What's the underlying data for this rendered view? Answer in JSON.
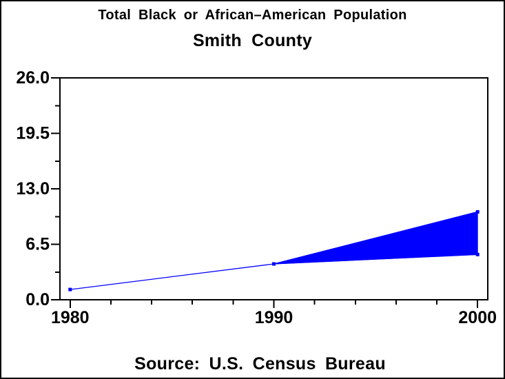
{
  "page": {
    "title_line1": "Total Black or African–American Population",
    "title_line2": "Smith County",
    "footnote": "Source: U.S. Census Bureau"
  },
  "chart_data": {
    "type": "area",
    "title": "Total Black or African–American Population",
    "subtitle": "Smith County",
    "source_note": "Source: U.S. Census Bureau",
    "xlabel": "",
    "ylabel": "",
    "xlim": [
      1979.5,
      2000.5
    ],
    "ylim": [
      0,
      26
    ],
    "grid": false,
    "legend": "none",
    "series_color": "#0000ff",
    "axis_color": "#000000",
    "x_major_ticks": [
      1980,
      1990,
      2000
    ],
    "x_major_tick_labels": [
      "1980",
      "1990",
      "2000"
    ],
    "x_minor_step": 2,
    "y_major_ticks": [
      0.0,
      6.5,
      13.0,
      19.5,
      26.0
    ],
    "y_tick_labels": [
      "0.0",
      "6.5",
      "13.0",
      "19.5",
      "26.0"
    ],
    "y_minor_ticks": [
      3.25,
      9.75,
      16.25,
      22.75
    ],
    "series": [
      {
        "name": "lower-line",
        "x": [
          1980,
          1990,
          2000
        ],
        "y": [
          1.2,
          4.2,
          5.3
        ]
      },
      {
        "name": "upper-line",
        "x": [
          1990,
          2000
        ],
        "y": [
          4.2,
          10.3
        ]
      }
    ],
    "band": {
      "x": [
        1990,
        2000
      ],
      "lower": [
        4.2,
        5.3
      ],
      "upper": [
        4.2,
        10.3
      ]
    },
    "markers": [
      [
        1980,
        1.2
      ],
      [
        1990,
        4.2
      ],
      [
        2000,
        5.3
      ],
      [
        2000,
        10.3
      ]
    ]
  }
}
